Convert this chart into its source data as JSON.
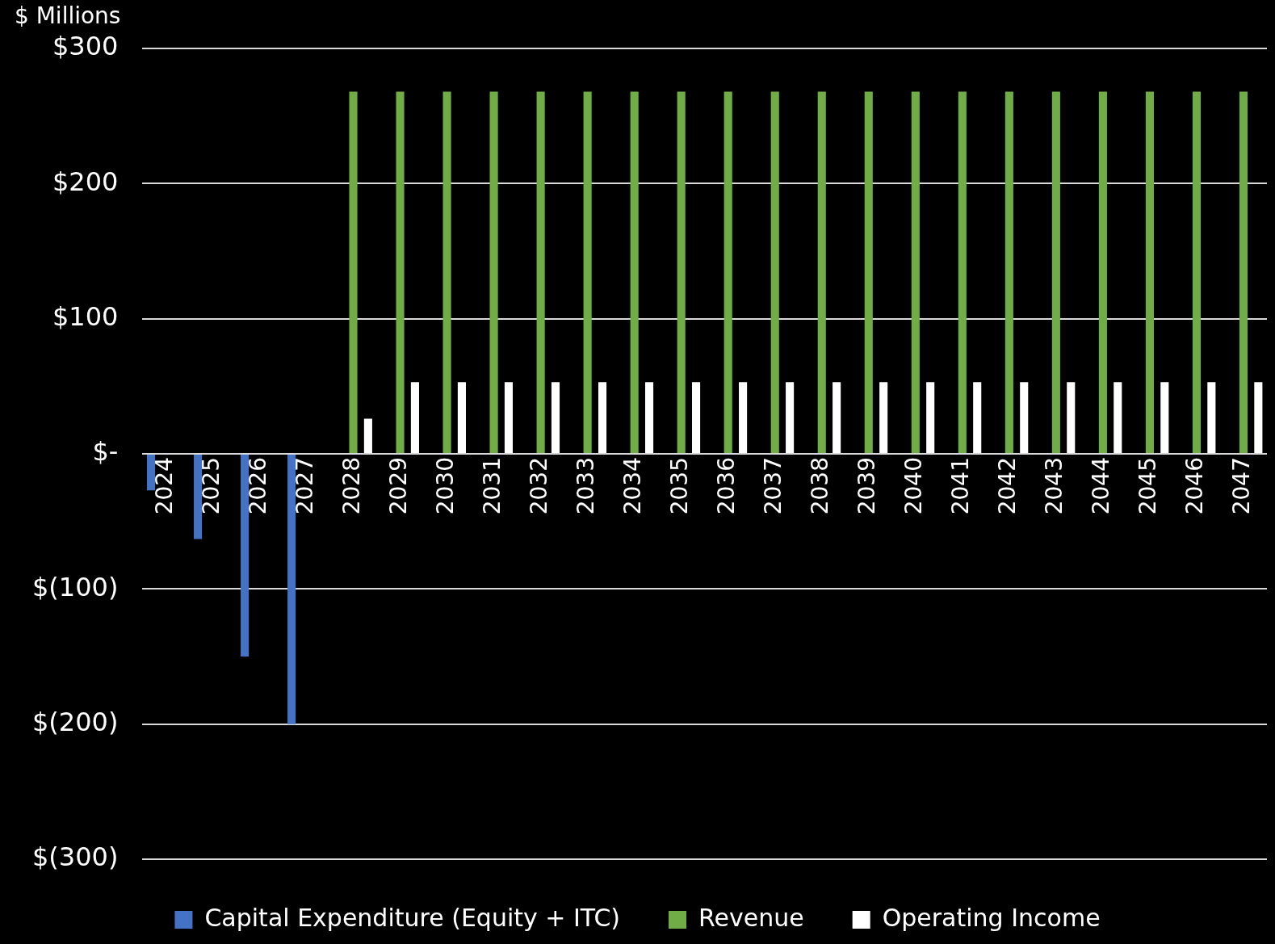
{
  "chart_data": {
    "type": "bar",
    "ylabel": "$ Millions",
    "categories": [
      "2024",
      "2025",
      "2026",
      "2027",
      "2028",
      "2029",
      "2030",
      "2031",
      "2032",
      "2033",
      "2034",
      "2035",
      "2036",
      "2037",
      "2038",
      "2039",
      "2040",
      "2041",
      "2042",
      "2043",
      "2044",
      "2045",
      "2046",
      "2047"
    ],
    "series": [
      {
        "name": "Capital Expenditure (Equity + ITC)",
        "color": "#4472c4",
        "values": [
          -27,
          -63,
          -150,
          -200,
          null,
          null,
          null,
          null,
          null,
          null,
          null,
          null,
          null,
          null,
          null,
          null,
          null,
          null,
          null,
          null,
          null,
          null,
          null,
          null
        ]
      },
      {
        "name": "Revenue",
        "color": "#70ad47",
        "values": [
          null,
          null,
          null,
          null,
          268,
          268,
          268,
          268,
          268,
          268,
          268,
          268,
          268,
          268,
          268,
          268,
          268,
          268,
          268,
          268,
          268,
          268,
          268,
          268
        ]
      },
      {
        "name": "Operating Income",
        "color": "#ffffff",
        "values": [
          null,
          null,
          null,
          null,
          26,
          53,
          53,
          53,
          53,
          53,
          53,
          53,
          53,
          53,
          53,
          53,
          53,
          53,
          53,
          53,
          53,
          53,
          53,
          53
        ]
      }
    ],
    "ylim": [
      -300,
      300
    ],
    "yticks": [
      {
        "value": 300,
        "label": "$300"
      },
      {
        "value": 200,
        "label": "$200"
      },
      {
        "value": 100,
        "label": "$100"
      },
      {
        "value": 0,
        "label": "$-"
      },
      {
        "value": -100,
        "label": "$(100)"
      },
      {
        "value": -200,
        "label": "$(200)"
      },
      {
        "value": -300,
        "label": "$(300)"
      }
    ],
    "grid": "y",
    "legend": "bottom"
  }
}
